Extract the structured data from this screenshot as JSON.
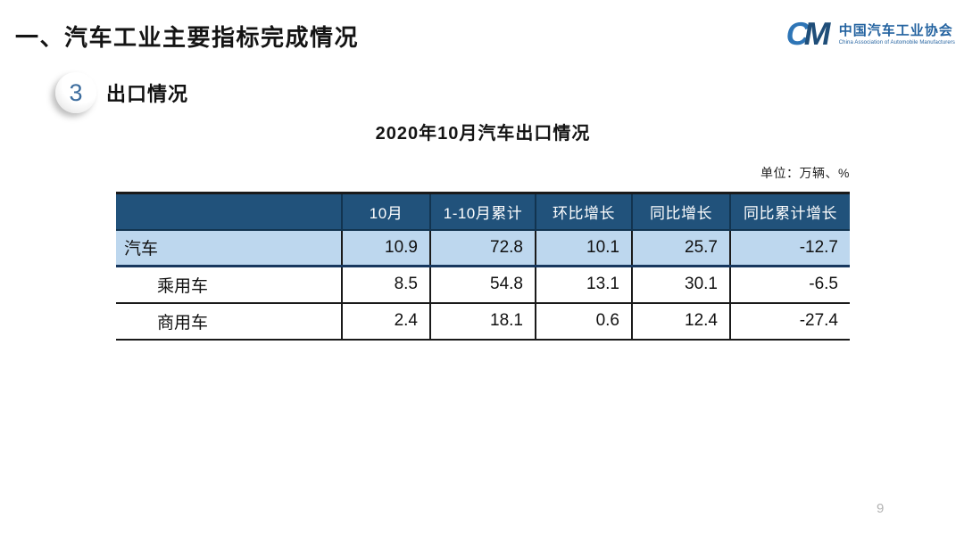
{
  "slide": {
    "title": "一、汽车工业主要指标完成情况",
    "section_number": "3",
    "section_title": "出口情况",
    "table_title": "2020年10月汽车出口情况",
    "unit_note": "单位：万辆、%",
    "page_number": "9"
  },
  "logo": {
    "monogram_c": "C",
    "monogram_m": "M",
    "org_name_cn": "中国汽车工业协会",
    "org_name_en": "China Association of Automobile Manufacturers"
  },
  "chart_data": {
    "type": "table",
    "title": "2020年10月汽车出口情况",
    "unit": "万辆、%",
    "columns": [
      "",
      "10月",
      "1-10月累计",
      "环比增长",
      "同比增长",
      "同比累计增长"
    ],
    "rows": [
      {
        "label": "汽车",
        "values": [
          "10.9",
          "72.8",
          "10.1",
          "25.7",
          "-12.7"
        ],
        "highlight": true,
        "indent": false
      },
      {
        "label": "乘用车",
        "values": [
          "8.5",
          "54.8",
          "13.1",
          "30.1",
          "-6.5"
        ],
        "highlight": false,
        "indent": true
      },
      {
        "label": "商用车",
        "values": [
          "2.4",
          "18.1",
          "0.6",
          "12.4",
          "-27.4"
        ],
        "highlight": false,
        "indent": true
      }
    ]
  },
  "colors": {
    "header_bg": "#21527B",
    "highlight_row_bg": "#BDD7EE",
    "accent_navy": "#17375E",
    "logo_blue": "#2463A0",
    "logo_c_blue": "#2E75B6",
    "logo_m_navy": "#1F4E79"
  }
}
